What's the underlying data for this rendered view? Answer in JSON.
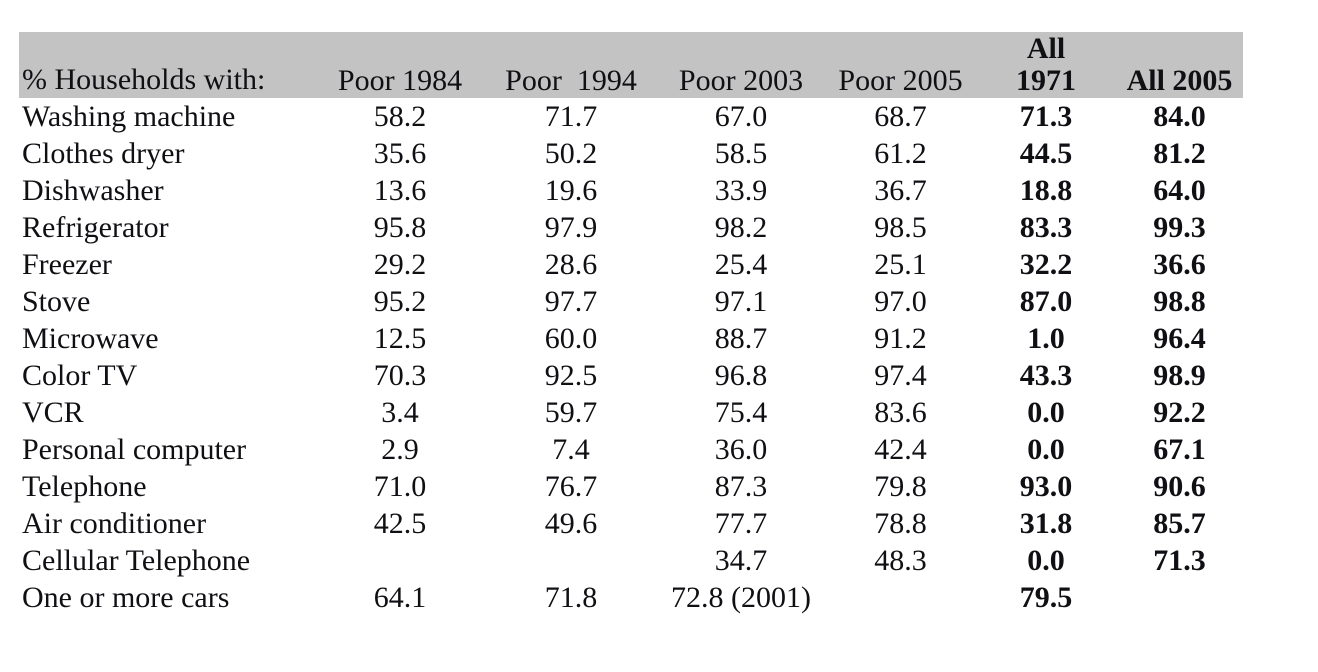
{
  "page": {
    "background": "#ffffff"
  },
  "table": {
    "corner_header": "% Households with:",
    "columns": [
      {
        "line1": "",
        "line2": "Poor 1984",
        "bold": false
      },
      {
        "line1": "",
        "line2": "Poor  1994",
        "bold": false
      },
      {
        "line1": "",
        "line2": "Poor 2003",
        "bold": false
      },
      {
        "line1": "",
        "line2": "Poor 2005",
        "bold": false
      },
      {
        "line1": "All",
        "line2": "1971",
        "bold": true
      },
      {
        "line1": "",
        "line2": "All 2005",
        "bold": true
      }
    ],
    "rows": [
      {
        "label": "Washing machine",
        "values": [
          "58.2",
          "71.7",
          "67.0",
          "68.7",
          "71.3",
          "84.0"
        ]
      },
      {
        "label": "Clothes dryer",
        "values": [
          "35.6",
          "50.2",
          "58.5",
          "61.2",
          "44.5",
          "81.2"
        ]
      },
      {
        "label": "Dishwasher",
        "values": [
          "13.6",
          "19.6",
          "33.9",
          "36.7",
          "18.8",
          "64.0"
        ]
      },
      {
        "label": "Refrigerator",
        "values": [
          "95.8",
          "97.9",
          "98.2",
          "98.5",
          "83.3",
          "99.3"
        ]
      },
      {
        "label": "Freezer",
        "values": [
          "29.2",
          "28.6",
          "25.4",
          "25.1",
          "32.2",
          "36.6"
        ]
      },
      {
        "label": "Stove",
        "values": [
          "95.2",
          "97.7",
          "97.1",
          "97.0",
          "87.0",
          "98.8"
        ]
      },
      {
        "label": "Microwave",
        "values": [
          "12.5",
          "60.0",
          "88.7",
          "91.2",
          "1.0",
          "96.4"
        ]
      },
      {
        "label": "Color TV",
        "values": [
          "70.3",
          "92.5",
          "96.8",
          "97.4",
          "43.3",
          "98.9"
        ]
      },
      {
        "label": "VCR",
        "values": [
          "3.4",
          "59.7",
          "75.4",
          "83.6",
          "0.0",
          "92.2"
        ]
      },
      {
        "label": "Personal computer",
        "values": [
          "2.9",
          "7.4",
          "36.0",
          "42.4",
          "0.0",
          "67.1"
        ]
      },
      {
        "label": "Telephone",
        "values": [
          "71.0",
          "76.7",
          "87.3",
          "79.8",
          "93.0",
          "90.6"
        ]
      },
      {
        "label": "Air conditioner",
        "values": [
          "42.5",
          "49.6",
          "77.7",
          "78.8",
          "31.8",
          "85.7"
        ]
      },
      {
        "label": "Cellular Telephone",
        "values": [
          "",
          "",
          "34.7",
          "48.3",
          "0.0",
          "71.3"
        ]
      },
      {
        "label": "One or more cars",
        "values": [
          "64.1",
          "71.8",
          "72.8 (2001)",
          "",
          "79.5",
          ""
        ]
      }
    ],
    "colors": {
      "header_bg": "#c3c3c3",
      "text": "#101014"
    }
  },
  "chart_data": {
    "type": "table",
    "title": "% Households with:",
    "categories": [
      "Poor 1984",
      "Poor 1994",
      "Poor 2003",
      "Poor 2005",
      "All 1971",
      "All 2005"
    ],
    "series": [
      {
        "name": "Washing machine",
        "values": [
          58.2,
          71.7,
          67.0,
          68.7,
          71.3,
          84.0
        ]
      },
      {
        "name": "Clothes dryer",
        "values": [
          35.6,
          50.2,
          58.5,
          61.2,
          44.5,
          81.2
        ]
      },
      {
        "name": "Dishwasher",
        "values": [
          13.6,
          19.6,
          33.9,
          36.7,
          18.8,
          64.0
        ]
      },
      {
        "name": "Refrigerator",
        "values": [
          95.8,
          97.9,
          98.2,
          98.5,
          83.3,
          99.3
        ]
      },
      {
        "name": "Freezer",
        "values": [
          29.2,
          28.6,
          25.4,
          25.1,
          32.2,
          36.6
        ]
      },
      {
        "name": "Stove",
        "values": [
          95.2,
          97.7,
          97.1,
          97.0,
          87.0,
          98.8
        ]
      },
      {
        "name": "Microwave",
        "values": [
          12.5,
          60.0,
          88.7,
          91.2,
          1.0,
          96.4
        ]
      },
      {
        "name": "Color TV",
        "values": [
          70.3,
          92.5,
          96.8,
          97.4,
          43.3,
          98.9
        ]
      },
      {
        "name": "VCR",
        "values": [
          3.4,
          59.7,
          75.4,
          83.6,
          0.0,
          92.2
        ]
      },
      {
        "name": "Personal computer",
        "values": [
          2.9,
          7.4,
          36.0,
          42.4,
          0.0,
          67.1
        ]
      },
      {
        "name": "Telephone",
        "values": [
          71.0,
          76.7,
          87.3,
          79.8,
          93.0,
          90.6
        ]
      },
      {
        "name": "Air conditioner",
        "values": [
          42.5,
          49.6,
          77.7,
          78.8,
          31.8,
          85.7
        ]
      },
      {
        "name": "Cellular Telephone",
        "values": [
          null,
          null,
          34.7,
          48.3,
          0.0,
          71.3
        ]
      },
      {
        "name": "One or more cars",
        "values": [
          64.1,
          71.8,
          72.8,
          null,
          79.5,
          null
        ]
      }
    ],
    "notes": "Poor 2003 value for 'One or more cars' is labeled 72.8 (2001); 'All 1971' and 'All 2005' columns are bold"
  }
}
